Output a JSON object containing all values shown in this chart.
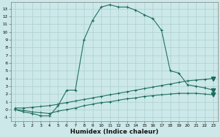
{
  "xlabel": "Humidex (Indice chaleur)",
  "bg_color": "#cce8e8",
  "grid_color": "#aacfcf",
  "line_color": "#1a6b5a",
  "xlim": [
    -0.5,
    23.5
  ],
  "ylim": [
    -1.5,
    13.8
  ],
  "xtick_labels": [
    "0",
    "1",
    "2",
    "3",
    "4",
    "5",
    "6",
    "7",
    "8",
    "9",
    "10",
    "11",
    "12",
    "13",
    "14",
    "15",
    "16",
    "17",
    "18",
    "19",
    "20",
    "21",
    "22",
    "23"
  ],
  "ytick_labels": [
    "-1",
    "0",
    "1",
    "2",
    "3",
    "4",
    "5",
    "6",
    "7",
    "8",
    "9",
    "10",
    "11",
    "12",
    "13"
  ],
  "ytick_vals": [
    -1,
    0,
    1,
    2,
    3,
    4,
    5,
    6,
    7,
    8,
    9,
    10,
    11,
    12,
    13
  ],
  "xtick_vals": [
    0,
    1,
    2,
    3,
    4,
    5,
    6,
    7,
    8,
    9,
    10,
    11,
    12,
    13,
    14,
    15,
    16,
    17,
    18,
    19,
    20,
    21,
    22,
    23
  ],
  "line1_x": [
    0,
    1,
    2,
    3,
    4,
    5,
    6,
    7,
    8,
    9,
    10,
    11,
    12,
    13,
    14,
    15,
    16,
    17,
    18,
    19,
    20,
    21,
    22,
    23
  ],
  "line1_y": [
    0.0,
    -0.3,
    -0.5,
    -0.8,
    -0.8,
    0.5,
    2.5,
    2.5,
    9.0,
    11.5,
    13.2,
    13.5,
    13.2,
    13.2,
    12.8,
    12.2,
    11.7,
    10.2,
    5.0,
    4.7,
    3.2,
    3.0,
    2.8,
    2.5
  ],
  "line2_x": [
    0,
    1,
    2,
    3,
    4,
    5,
    6,
    7,
    8,
    9,
    10,
    11,
    12,
    13,
    14,
    15,
    16,
    17,
    18,
    19,
    20,
    21,
    22,
    23
  ],
  "line2_y": [
    0.2,
    0.2,
    0.3,
    0.4,
    0.5,
    0.7,
    0.9,
    1.1,
    1.3,
    1.5,
    1.7,
    1.9,
    2.1,
    2.3,
    2.5,
    2.7,
    2.9,
    3.1,
    3.3,
    3.5,
    3.7,
    3.8,
    3.9,
    4.0
  ],
  "line3_x": [
    0,
    1,
    2,
    3,
    4,
    5,
    6,
    7,
    8,
    9,
    10,
    11,
    12,
    13,
    14,
    15,
    16,
    17,
    18,
    19,
    20,
    21,
    22,
    23
  ],
  "line3_y": [
    0.0,
    -0.1,
    -0.3,
    -0.4,
    -0.5,
    -0.2,
    0.0,
    0.2,
    0.5,
    0.7,
    0.9,
    1.0,
    1.2,
    1.4,
    1.5,
    1.7,
    1.8,
    1.9,
    2.0,
    2.1,
    2.1,
    2.1,
    2.0,
    1.9
  ],
  "marker_line1_end_x": [
    23
  ],
  "marker_line1_end_y": [
    2.5
  ],
  "marker_line2_end_x": [
    23
  ],
  "marker_line2_end_y": [
    4.0
  ],
  "marker_line3_end_x": [
    23
  ],
  "marker_line3_end_y": [
    1.9
  ]
}
